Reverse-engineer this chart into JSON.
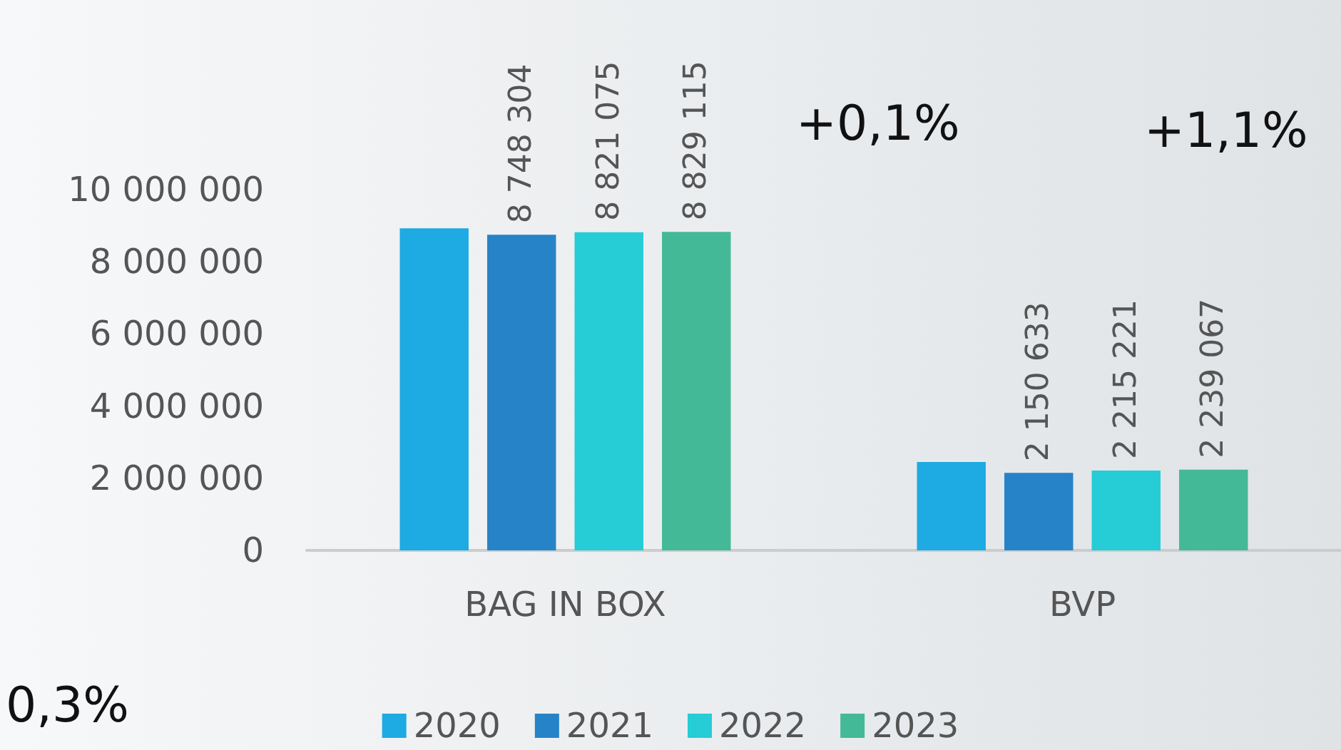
{
  "chart_data": {
    "type": "bar",
    "categories": [
      "BAG IN BOX",
      "BVP"
    ],
    "series": [
      {
        "name": "2020",
        "color": "#1eaae2",
        "values": [
          8930000,
          2450000
        ],
        "value_labels": [
          null,
          null
        ]
      },
      {
        "name": "2021",
        "color": "#2783c8",
        "values": [
          8748304,
          2150633
        ],
        "value_labels": [
          "8 748 304",
          "2 150 633"
        ]
      },
      {
        "name": "2022",
        "color": "#26ccd6",
        "values": [
          8821075,
          2215221
        ],
        "value_labels": [
          "8 821 075",
          "2 215 221"
        ]
      },
      {
        "name": "2023",
        "color": "#43b998",
        "values": [
          8829115,
          2239067
        ],
        "value_labels": [
          "8 829 115",
          "2 239 067"
        ]
      }
    ],
    "ylim": [
      0,
      10000000
    ],
    "yticks": [
      {
        "value": 0,
        "label": "0"
      },
      {
        "value": 2000000,
        "label": "2 000 000"
      },
      {
        "value": 4000000,
        "label": "4 000 000"
      },
      {
        "value": 6000000,
        "label": "6 000 000"
      },
      {
        "value": 8000000,
        "label": "8 000 000"
      },
      {
        "value": 10000000,
        "label": "10 000 000"
      }
    ],
    "annotations": [
      "+0,1%",
      "+1,1%",
      "0,3%"
    ],
    "legend": "bottom",
    "grid": false
  }
}
